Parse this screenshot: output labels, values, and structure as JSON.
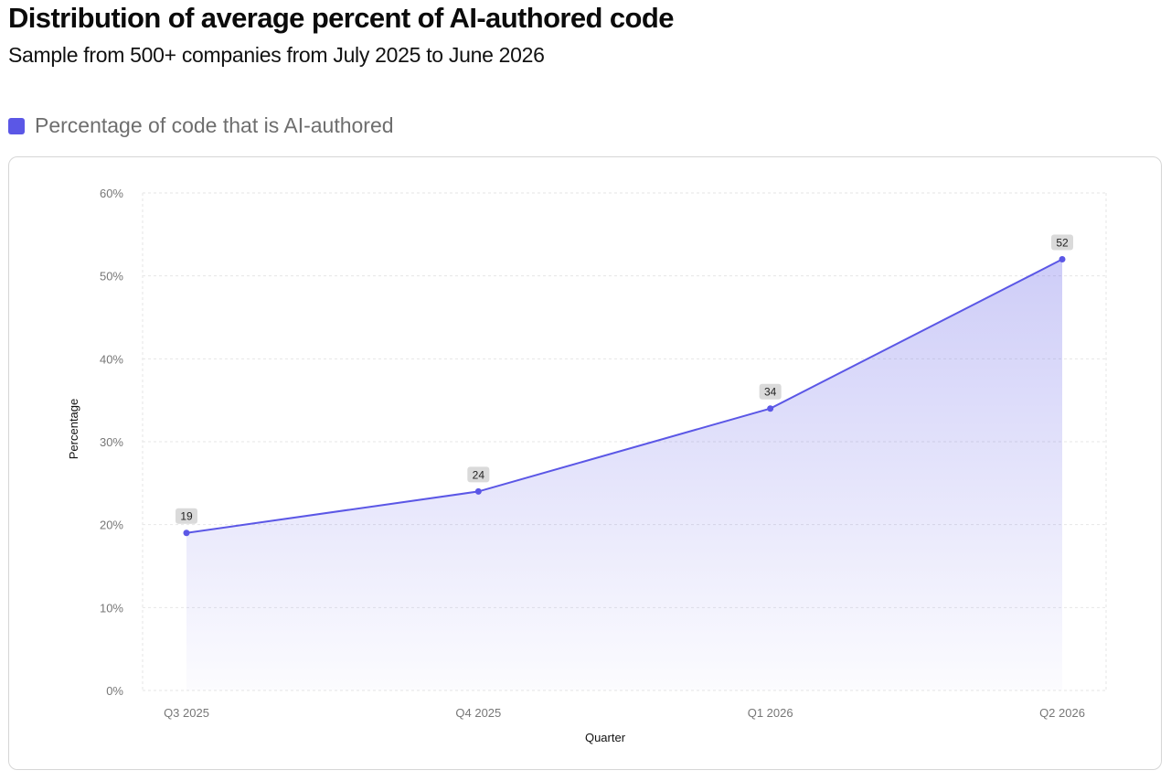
{
  "header": {
    "title": "Distribution of average percent of AI-authored code",
    "subtitle": "Sample from 500+ companies from July 2025 to June 2026"
  },
  "legend": {
    "label": "Percentage of code that is AI-authored",
    "color": "#5b57e6"
  },
  "chart_data": {
    "type": "area",
    "title": "Distribution of average percent of AI-authored code",
    "subtitle": "Sample from 500+ companies from July 2025 to June 2026",
    "xlabel": "Quarter",
    "ylabel": "Percentage",
    "categories": [
      "Q3 2025",
      "Q4 2025",
      "Q1 2026",
      "Q2 2026"
    ],
    "series": [
      {
        "name": "Percentage of code that is AI-authored",
        "values": [
          19,
          24,
          34,
          52
        ],
        "color": "#5b57e6"
      }
    ],
    "data_labels": [
      "19",
      "24",
      "34",
      "52"
    ],
    "ylim": [
      0,
      60
    ],
    "yticks": [
      0,
      10,
      20,
      30,
      40,
      50,
      60
    ],
    "ytick_labels": [
      "0%",
      "10%",
      "20%",
      "30%",
      "40%",
      "50%",
      "60%"
    ],
    "grid": true,
    "legend_position": "top-left"
  }
}
